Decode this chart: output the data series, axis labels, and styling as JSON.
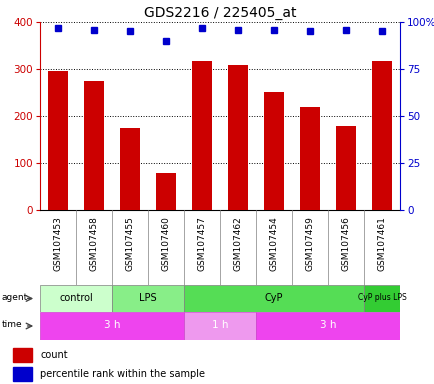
{
  "title": "GDS2216 / 225405_at",
  "samples": [
    "GSM107453",
    "GSM107458",
    "GSM107455",
    "GSM107460",
    "GSM107457",
    "GSM107462",
    "GSM107454",
    "GSM107459",
    "GSM107456",
    "GSM107461"
  ],
  "counts": [
    295,
    275,
    175,
    78,
    318,
    308,
    250,
    220,
    178,
    318
  ],
  "percentiles": [
    97,
    96,
    95,
    90,
    97,
    96,
    96,
    95,
    96,
    95
  ],
  "bar_color": "#cc0000",
  "dot_color": "#0000cc",
  "ylim_left": [
    0,
    400
  ],
  "ylim_right": [
    0,
    100
  ],
  "yticks_left": [
    0,
    100,
    200,
    300,
    400
  ],
  "yticks_right": [
    0,
    25,
    50,
    75,
    100
  ],
  "ytick_right_labels": [
    "0",
    "25",
    "50",
    "75",
    "100%"
  ],
  "agent_groups": [
    {
      "label": "control",
      "start": 0,
      "end": 2,
      "color": "#ccffcc"
    },
    {
      "label": "LPS",
      "start": 2,
      "end": 4,
      "color": "#88ee88"
    },
    {
      "label": "CyP",
      "start": 4,
      "end": 9,
      "color": "#55dd55"
    },
    {
      "label": "CyP plus LPS",
      "start": 9,
      "end": 10,
      "color": "#33cc33"
    }
  ],
  "time_groups": [
    {
      "label": "3 h",
      "start": 0,
      "end": 4,
      "color": "#ee44ee"
    },
    {
      "label": "1 h",
      "start": 4,
      "end": 6,
      "color": "#ee99ee"
    },
    {
      "label": "3 h",
      "start": 6,
      "end": 10,
      "color": "#ee44ee"
    }
  ],
  "legend_items": [
    {
      "color": "#cc0000",
      "label": "count"
    },
    {
      "color": "#0000cc",
      "label": "percentile rank within the sample"
    }
  ],
  "background_color": "#ffffff"
}
